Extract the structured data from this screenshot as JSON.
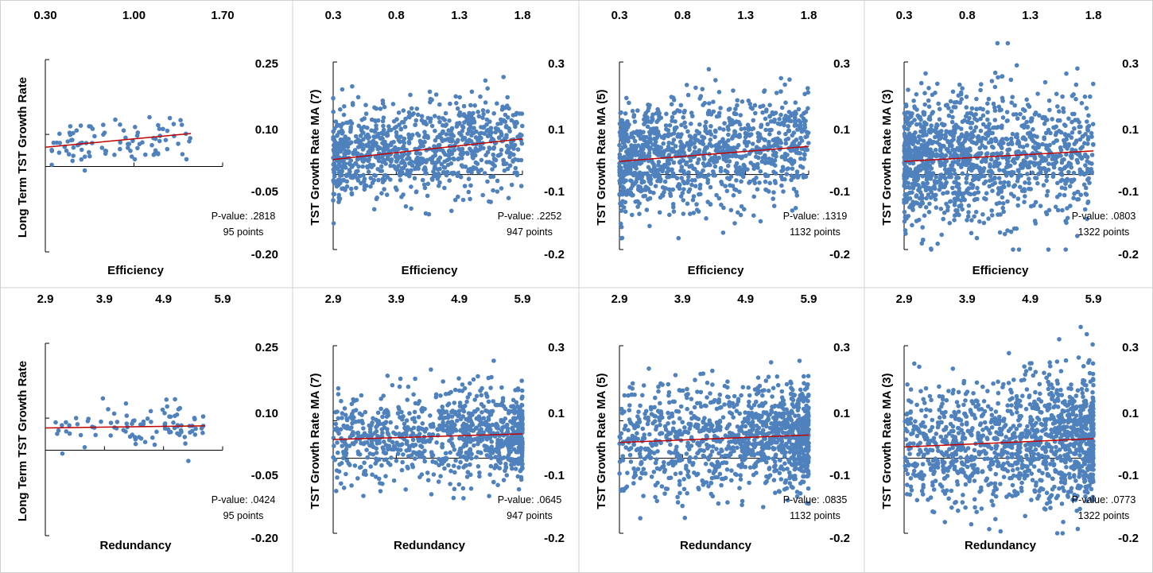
{
  "colors": {
    "point": "#4F81BD",
    "trend": "#C00000",
    "axis": "#000000",
    "grid": "#D0D0D0"
  },
  "chart_data": [
    {
      "type": "scatter",
      "xlabel": "Efficiency",
      "ylabel": "Long Term TST Growth Rate",
      "xlim": [
        0.3,
        1.7
      ],
      "ylim": [
        -0.2,
        0.25
      ],
      "xticks": [
        "0.30",
        "1.00",
        "1.70"
      ],
      "yticks": [
        "0.25",
        "0.10",
        "-0.05",
        "-0.20"
      ],
      "trend": [
        [
          0.3,
          0.045
        ],
        [
          1.45,
          0.077
        ]
      ],
      "p_value_label": "P-value: .2818",
      "points_label": "95 points",
      "n_points": 95,
      "x_range": [
        0.35,
        1.45
      ],
      "y_spread": [
        -0.04,
        0.13
      ]
    },
    {
      "type": "scatter",
      "xlabel": "Efficiency",
      "ylabel": "TST Growth Rate MA (7)",
      "xlim": [
        0.3,
        1.8
      ],
      "ylim": [
        -0.2,
        0.3
      ],
      "xticks": [
        "0.3",
        "0.8",
        "1.3",
        "1.8"
      ],
      "yticks": [
        "0.3",
        "0.1",
        "-0.1",
        "-0.2"
      ],
      "trend": [
        [
          0.3,
          0.04
        ],
        [
          1.8,
          0.095
        ]
      ],
      "p_value_label": "P-value: .2252",
      "points_label": "947 points",
      "n_points": 947,
      "x_range": [
        0.3,
        1.8
      ],
      "y_spread": [
        -0.13,
        0.26
      ]
    },
    {
      "type": "scatter",
      "xlabel": "Efficiency",
      "ylabel": "TST Growth Rate MA (5)",
      "xlim": [
        0.3,
        1.8
      ],
      "ylim": [
        -0.2,
        0.3
      ],
      "xticks": [
        "0.3",
        "0.8",
        "1.3",
        "1.8"
      ],
      "yticks": [
        "0.3",
        "0.1",
        "-0.1",
        "-0.2"
      ],
      "trend": [
        [
          0.3,
          0.035
        ],
        [
          1.8,
          0.075
        ]
      ],
      "p_value_label": "P-value: .1319",
      "points_label": "1132 points",
      "n_points": 1132,
      "x_range": [
        0.3,
        1.8
      ],
      "y_spread": [
        -0.17,
        0.3
      ]
    },
    {
      "type": "scatter",
      "xlabel": "Efficiency",
      "ylabel": "TST Growth Rate MA (3)",
      "xlim": [
        0.3,
        1.8
      ],
      "ylim": [
        -0.2,
        0.3
      ],
      "xticks": [
        "0.3",
        "0.8",
        "1.3",
        "1.8"
      ],
      "yticks": [
        "0.3",
        "0.1",
        "-0.1",
        "-0.2"
      ],
      "trend": [
        [
          0.3,
          0.035
        ],
        [
          1.8,
          0.063
        ]
      ],
      "p_value_label": "P-value: .0803",
      "points_label": "1322 points",
      "n_points": 1322,
      "x_range": [
        0.3,
        1.8
      ],
      "y_spread": [
        -0.2,
        0.35
      ]
    },
    {
      "type": "scatter",
      "xlabel": "Redundancy",
      "ylabel": "Long Term TST Growth Rate",
      "xlim": [
        2.9,
        5.9
      ],
      "ylim": [
        -0.2,
        0.25
      ],
      "xticks": [
        "2.9",
        "3.9",
        "4.9",
        "5.9"
      ],
      "yticks": [
        "0.25",
        "0.10",
        "-0.05",
        "-0.20"
      ],
      "trend": [
        [
          2.9,
          0.052
        ],
        [
          5.6,
          0.057
        ]
      ],
      "p_value_label": "P-value: .0424",
      "points_label": "95 points",
      "n_points": 95,
      "x_range": [
        3.0,
        5.6
      ],
      "y_spread": [
        -0.04,
        0.13
      ]
    },
    {
      "type": "scatter",
      "xlabel": "Redundancy",
      "ylabel": "TST Growth Rate MA (7)",
      "xlim": [
        2.9,
        5.9
      ],
      "ylim": [
        -0.2,
        0.3
      ],
      "xticks": [
        "2.9",
        "3.9",
        "4.9",
        "5.9"
      ],
      "yticks": [
        "0.3",
        "0.1",
        "-0.1",
        "-0.2"
      ],
      "trend": [
        [
          2.9,
          0.05
        ],
        [
          5.9,
          0.065
        ]
      ],
      "p_value_label": "P-value: .0645",
      "points_label": "947 points",
      "n_points": 947,
      "x_range": [
        2.9,
        5.9
      ],
      "y_spread": [
        -0.13,
        0.26
      ]
    },
    {
      "type": "scatter",
      "xlabel": "Redundancy",
      "ylabel": "TST Growth Rate MA (5)",
      "xlim": [
        2.9,
        5.9
      ],
      "ylim": [
        -0.2,
        0.3
      ],
      "xticks": [
        "2.9",
        "3.9",
        "4.9",
        "5.9"
      ],
      "yticks": [
        "0.3",
        "0.1",
        "-0.1",
        "-0.2"
      ],
      "trend": [
        [
          2.9,
          0.042
        ],
        [
          5.9,
          0.062
        ]
      ],
      "p_value_label": "P-value: .0835",
      "points_label": "1132 points",
      "n_points": 1132,
      "x_range": [
        2.9,
        5.9
      ],
      "y_spread": [
        -0.16,
        0.3
      ]
    },
    {
      "type": "scatter",
      "xlabel": "Redundancy",
      "ylabel": "TST Growth Rate MA (3)",
      "xlim": [
        2.9,
        5.9
      ],
      "ylim": [
        -0.2,
        0.3
      ],
      "xticks": [
        "2.9",
        "3.9",
        "4.9",
        "5.9"
      ],
      "yticks": [
        "0.3",
        "0.1",
        "-0.1",
        "-0.2"
      ],
      "trend": [
        [
          2.9,
          0.03
        ],
        [
          5.9,
          0.052
        ]
      ],
      "p_value_label": "P-value: .0773",
      "points_label": "1322 points",
      "n_points": 1322,
      "x_range": [
        2.9,
        5.9
      ],
      "y_spread": [
        -0.2,
        0.35
      ]
    }
  ]
}
